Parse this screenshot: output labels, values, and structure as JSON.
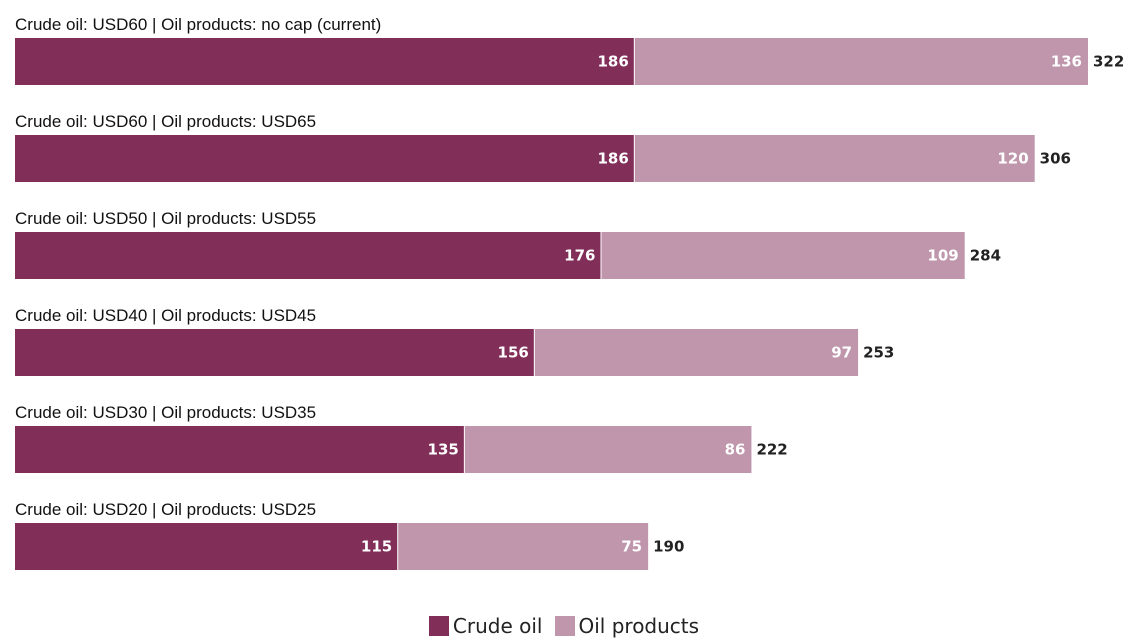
{
  "chart_data": {
    "type": "bar",
    "orientation": "horizontal",
    "stacked": true,
    "categories": [
      "Crude oil: USD60 | Oil products: no cap (current)",
      "Crude oil: USD60 | Oil products: USD65",
      "Crude oil: USD50 | Oil products: USD55",
      "Crude oil: USD40 | Oil products: USD45",
      "Crude oil: USD30 | Oil products: USD35",
      "Crude oil: USD20 | Oil products: USD25"
    ],
    "series": [
      {
        "name": "Crude oil",
        "color": "#812F59",
        "values": [
          186,
          186,
          176,
          156,
          135,
          115
        ]
      },
      {
        "name": "Oil products",
        "color": "#BF96AB",
        "values": [
          136,
          120,
          109,
          97,
          86,
          75
        ]
      }
    ],
    "totals": [
      322,
      306,
      284,
      253,
      222,
      190
    ],
    "xlim": [
      0,
      322
    ],
    "grid": false,
    "legend_position": "bottom-center",
    "title": "",
    "xlabel": "",
    "ylabel": ""
  }
}
